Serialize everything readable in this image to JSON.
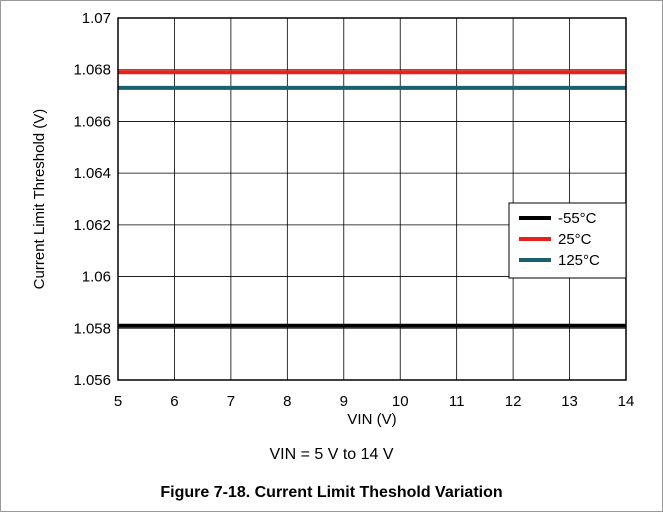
{
  "chart_data": {
    "type": "line",
    "x": [
      5,
      6,
      7,
      8,
      9,
      10,
      11,
      12,
      13,
      14
    ],
    "xlabel": "VIN (V)",
    "ylabel": "Current Limit Threshold (V)",
    "xlim": [
      5,
      14
    ],
    "ylim": [
      1.056,
      1.07
    ],
    "xticks": [
      "5",
      "6",
      "7",
      "8",
      "9",
      "10",
      "11",
      "12",
      "13",
      "14"
    ],
    "yticks": [
      "1.056",
      "1.058",
      "1.06",
      "1.062",
      "1.064",
      "1.066",
      "1.068",
      "1.07"
    ],
    "grid": true,
    "legend_position": "right",
    "series": [
      {
        "name": "-55°C",
        "color": "#000000",
        "values": [
          1.0581,
          1.0581,
          1.0581,
          1.0581,
          1.0581,
          1.0581,
          1.0581,
          1.0581,
          1.0581,
          1.0581
        ]
      },
      {
        "name": "25°C",
        "color": "#e8211a",
        "values": [
          1.0679,
          1.0679,
          1.0679,
          1.0679,
          1.0679,
          1.0679,
          1.0679,
          1.0679,
          1.0679,
          1.0679
        ]
      },
      {
        "name": "125°C",
        "color": "#1c5f6e",
        "values": [
          1.0673,
          1.0673,
          1.0673,
          1.0673,
          1.0673,
          1.0673,
          1.0673,
          1.0673,
          1.0673,
          1.0673
        ]
      }
    ]
  },
  "condition_text": "VIN = 5 V to 14 V",
  "figure_caption": "Figure 7-18. Current Limit Theshold Variation"
}
